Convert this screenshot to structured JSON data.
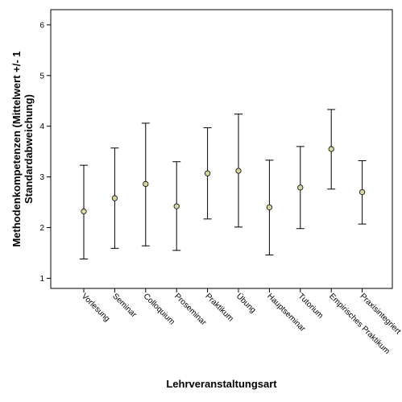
{
  "chart_data": {
    "type": "errorbar",
    "categories": [
      "Vorlesung",
      "Seminar",
      "Colloquium",
      "Proseminar",
      "Praktikum",
      "Übung",
      "Hauptseminar",
      "Tutorium",
      "Empirisches Praktikum",
      "Praxisintegriert"
    ],
    "means": [
      2.32,
      2.58,
      2.86,
      2.42,
      3.07,
      3.12,
      2.4,
      2.79,
      3.55,
      2.7
    ],
    "lower": [
      1.38,
      1.59,
      1.64,
      1.55,
      2.17,
      2.01,
      1.46,
      1.98,
      2.76,
      2.07
    ],
    "upper": [
      3.23,
      3.57,
      4.06,
      3.3,
      3.97,
      4.24,
      3.33,
      3.6,
      4.33,
      3.32
    ],
    "xlabel": "Lehrveranstaltungsart",
    "ylabel_lines": [
      "Methodenkompetenzen (Mittelwert +/- 1",
      "Standardabweichung)"
    ],
    "ylim": [
      0.8,
      6.3
    ],
    "yticks": [
      1,
      2,
      3,
      4,
      5,
      6
    ],
    "grid": false,
    "marker_color": "#d8d4a0",
    "line_color": "#000000"
  }
}
